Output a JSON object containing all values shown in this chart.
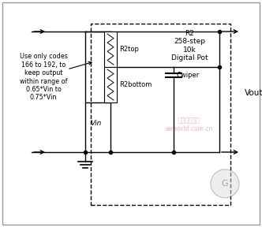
{
  "bg_color": "#ffffff",
  "line_color": "#000000",
  "text_annotation": "Use only codes\n166 to 192, to\nkeep output\nwithin range of\n0.65*Vin to\n0.75*Vin",
  "label_r2top": "R2top",
  "label_r2bottom": "R2bottom",
  "label_r2": "R2\n258-step\n10k\nDigital Pot",
  "label_cwiper": "Cwiper",
  "label_vin": "Vin",
  "label_vout": "Vout",
  "figsize": [
    3.32,
    2.88
  ],
  "dpi": 100
}
